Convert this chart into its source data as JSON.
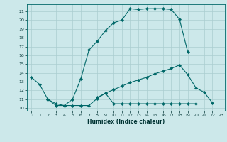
{
  "title": "",
  "xlabel": "Humidex (Indice chaleur)",
  "xlim": [
    -0.5,
    23.5
  ],
  "ylim": [
    9.7,
    21.8
  ],
  "yticks": [
    10,
    11,
    12,
    13,
    14,
    15,
    16,
    17,
    18,
    19,
    20,
    21
  ],
  "xticks": [
    0,
    1,
    2,
    3,
    4,
    5,
    6,
    7,
    8,
    9,
    10,
    11,
    12,
    13,
    14,
    15,
    16,
    17,
    18,
    19,
    20,
    21,
    22,
    23
  ],
  "bg_color": "#cce8ea",
  "grid_color": "#aacdd0",
  "line_color": "#006868",
  "line1_x": [
    0,
    1,
    2,
    3,
    4,
    5,
    6,
    7,
    8,
    9,
    10,
    11,
    12,
    13,
    14,
    15,
    16,
    17,
    18,
    19
  ],
  "line1_y": [
    13.5,
    12.7,
    11.0,
    10.3,
    10.3,
    11.0,
    13.3,
    16.6,
    17.6,
    18.8,
    19.7,
    20.0,
    21.3,
    21.2,
    21.3,
    21.3,
    21.3,
    21.2,
    20.1,
    16.4
  ],
  "line2_x": [
    2,
    3,
    4,
    5,
    6,
    7,
    8,
    9,
    10,
    11,
    12,
    13,
    14,
    15,
    16,
    17,
    18,
    19,
    20
  ],
  "line2_y": [
    11.0,
    10.5,
    10.3,
    10.3,
    10.3,
    10.3,
    11.1,
    11.7,
    10.5,
    10.5,
    10.5,
    10.5,
    10.5,
    10.5,
    10.5,
    10.5,
    10.5,
    10.5,
    10.5
  ],
  "line3_x": [
    8,
    9,
    10,
    11,
    12,
    13,
    14,
    15,
    16,
    17,
    18,
    19,
    20,
    21,
    22
  ],
  "line3_y": [
    11.2,
    11.7,
    12.1,
    12.5,
    12.9,
    13.2,
    13.5,
    13.9,
    14.2,
    14.5,
    14.9,
    13.8,
    12.3,
    11.8,
    10.6
  ]
}
